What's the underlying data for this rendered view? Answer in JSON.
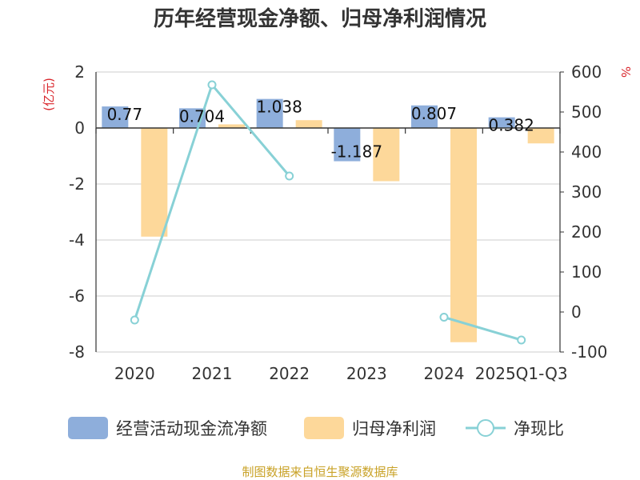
{
  "chart_data": {
    "type": "bar",
    "title": "历年经营现金净额、归母净利润情况",
    "categories": [
      "2020",
      "2021",
      "2022",
      "2023",
      "2024",
      "2025Q1-Q3"
    ],
    "left_unit": "(亿元)",
    "right_unit": "%",
    "left_ticks": [
      "2",
      "0",
      "-2",
      "-4",
      "-6",
      "-8"
    ],
    "right_ticks": [
      "600",
      "500",
      "400",
      "300",
      "200",
      "100",
      "0",
      "-100"
    ],
    "ylim_left": [
      -8,
      2
    ],
    "ylim_right": [
      -100,
      600
    ],
    "series": [
      {
        "name": "经营活动现金流净额",
        "kind": "bar",
        "axis": "left",
        "color": "#8eaedb",
        "values": [
          0.77,
          0.704,
          1.038,
          -1.187,
          0.807,
          0.382
        ],
        "labels": [
          "0.77",
          "0.704",
          "1.038",
          "-1.187",
          "0.807",
          "0.382"
        ]
      },
      {
        "name": "归母净利润",
        "kind": "bar",
        "axis": "left",
        "color": "#fdd89a",
        "values": [
          -3.88,
          0.13,
          0.28,
          -1.9,
          -7.65,
          -0.55
        ]
      },
      {
        "name": "净现比",
        "kind": "line",
        "axis": "right",
        "color": "#88d1d6",
        "values": [
          -20,
          568,
          340,
          null,
          -13,
          -70
        ]
      }
    ],
    "legend": "bottom",
    "grid": true
  },
  "footer": {
    "source": "制图数据来自恒生聚源数据库",
    "source_color": "#c9a227"
  },
  "colors": {
    "unit": "#d9262c",
    "axis": "#333333",
    "grid": "#cccccc"
  }
}
